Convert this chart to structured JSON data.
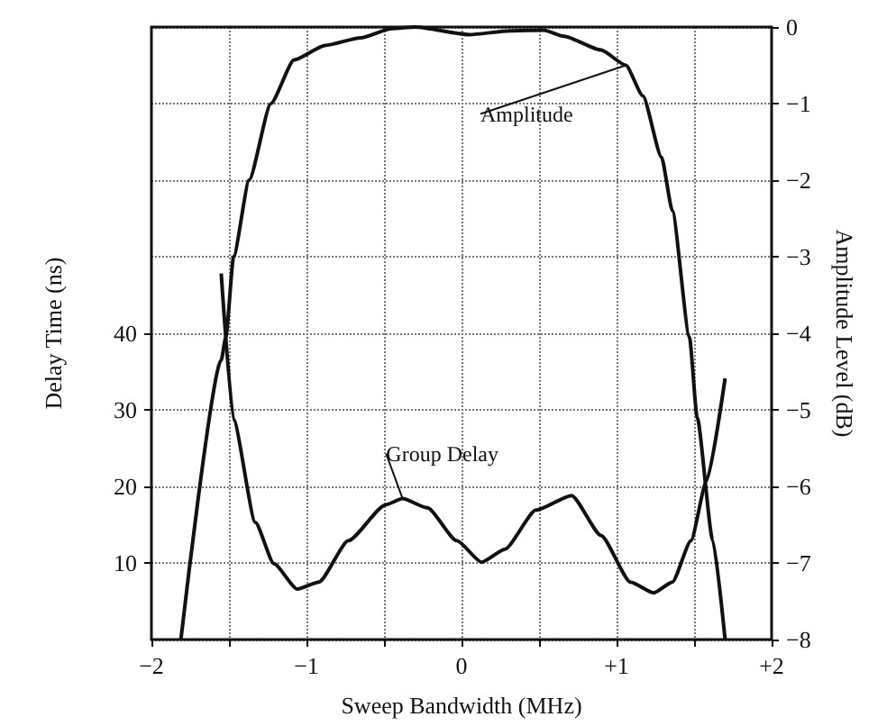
{
  "chart_data": {
    "type": "line",
    "xlabel": "Sweep Bandwidth (MHz)",
    "ylabel": "Delay Time (ns)",
    "y2label": "Amplitude Level (dB)",
    "xlim": [
      -2,
      2
    ],
    "xticks": [
      -2,
      {
        "value": -1.5,
        "label": null
      },
      -1,
      {
        "value": -0.5,
        "label": null
      },
      0,
      {
        "value": 0.5,
        "label": null
      },
      {
        "value": 1,
        "label": "+1"
      },
      {
        "value": 1.5,
        "label": null
      },
      {
        "value": 2,
        "label": "+2"
      }
    ],
    "ylim": [
      0,
      80
    ],
    "yticks": [
      10,
      20,
      30,
      40
    ],
    "y2lim": [
      -8,
      0
    ],
    "y2ticks": [
      -8,
      -7,
      -6,
      -5,
      -4,
      -3,
      -2,
      -1,
      0
    ],
    "grid": true,
    "marker": "none",
    "line_style": "solid",
    "series": [
      {
        "name": "Amplitude",
        "color": "#111111",
        "axis": "y2",
        "x": [
          -1.81,
          -1.55,
          -1.52,
          -1.47,
          -1.37,
          -1.23,
          -1.08,
          -0.88,
          -0.65,
          -0.45,
          -0.3,
          0.05,
          0.31,
          0.53,
          0.66,
          0.9,
          1.06,
          1.17,
          1.29,
          1.36,
          1.47,
          1.52,
          1.62,
          1.7
        ],
        "values": [
          -8,
          -4.35,
          -4.05,
          -3.0,
          -2.0,
          -1.0,
          -0.43,
          -0.24,
          -0.14,
          -0.02,
          0,
          -0.1,
          -0.05,
          -0.04,
          -0.12,
          -0.3,
          -0.5,
          -0.9,
          -1.7,
          -2.4,
          -4.05,
          -5.1,
          -6.7,
          -8
        ]
      },
      {
        "name": "Group Delay",
        "color": "#111111",
        "x": [
          -1.55,
          -1.47,
          -1.33,
          -1.21,
          -1.06,
          -0.92,
          -0.73,
          -0.49,
          -0.38,
          -0.22,
          -0.03,
          0.13,
          0.28,
          0.48,
          0.71,
          0.9,
          1.09,
          1.24,
          1.36,
          1.48,
          1.58,
          1.7
        ],
        "values": [
          47.8,
          28.7,
          15.3,
          9.9,
          6.6,
          7.5,
          12.9,
          17.6,
          18.4,
          17.2,
          12.9,
          10.1,
          11.8,
          16.9,
          18.8,
          13.6,
          7.5,
          6.1,
          7.5,
          12.9,
          20.7,
          34.1
        ]
      }
    ]
  }
}
